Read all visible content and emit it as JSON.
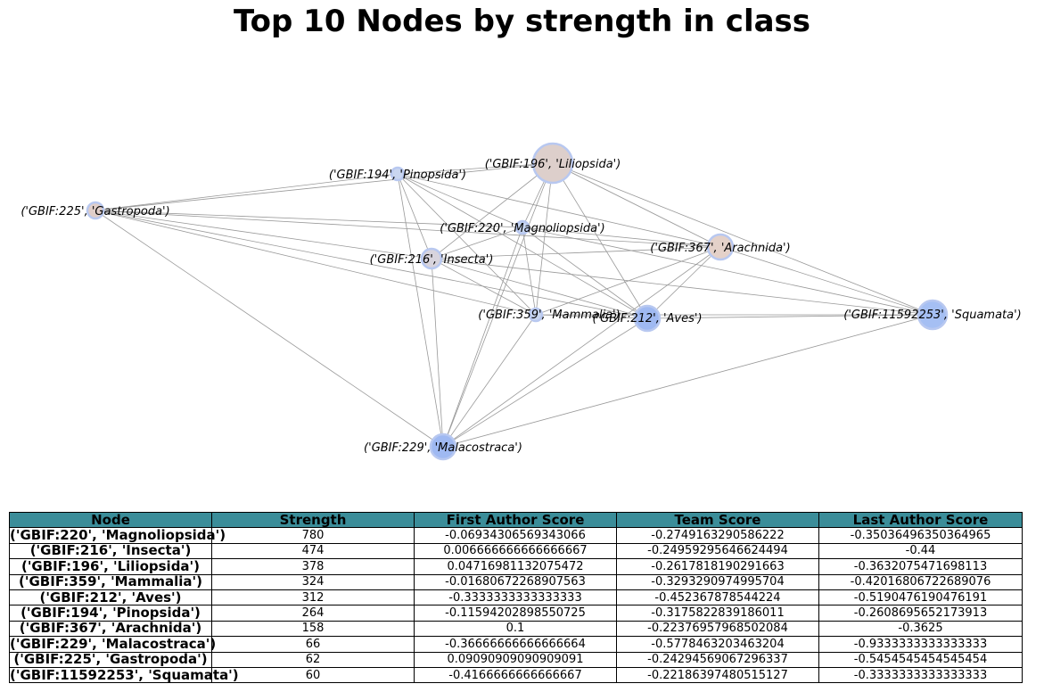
{
  "chart_data": {
    "type": "table",
    "title": "Top 10 Nodes by strength in class",
    "network": {
      "nodes": [
        {
          "id": "('GBIF:196', 'Liliopsida')",
          "color": "#ddcfcb"
        },
        {
          "id": "('GBIF:194', 'Pinopsida')",
          "color": "#c9d6f0"
        },
        {
          "id": "('GBIF:225', 'Gastropoda')",
          "color": "#e0cec9"
        },
        {
          "id": "('GBIF:220', 'Magnoliopsida')",
          "color": "#c7d6f2"
        },
        {
          "id": "('GBIF:367', 'Arachnida')",
          "color": "#e4d1c9"
        },
        {
          "id": "('GBIF:216', 'Insecta')",
          "color": "#d8d4dd"
        },
        {
          "id": "('GBIF:359', 'Mammalia')",
          "color": "#c8d6f0"
        },
        {
          "id": "('GBIF:212', 'Aves')",
          "color": "#9fb9f2"
        },
        {
          "id": "('GBIF:11592253', 'Squamata')",
          "color": "#a5bff3"
        },
        {
          "id": "('GBIF:229', 'Malacostraca')",
          "color": "#9fb9f2"
        }
      ],
      "edges": [
        [
          1,
          0
        ],
        [
          1,
          2
        ],
        [
          1,
          5
        ],
        [
          1,
          6
        ],
        [
          1,
          7
        ],
        [
          1,
          4
        ],
        [
          1,
          9
        ],
        [
          0,
          2
        ],
        [
          0,
          5
        ],
        [
          0,
          6
        ],
        [
          0,
          7
        ],
        [
          0,
          4
        ],
        [
          0,
          8
        ],
        [
          0,
          9
        ],
        [
          0,
          3
        ],
        [
          2,
          3
        ],
        [
          2,
          4
        ],
        [
          2,
          5
        ],
        [
          2,
          6
        ],
        [
          2,
          7
        ],
        [
          2,
          9
        ],
        [
          3,
          5
        ],
        [
          3,
          6
        ],
        [
          3,
          7
        ],
        [
          3,
          4
        ],
        [
          3,
          8
        ],
        [
          3,
          9
        ],
        [
          5,
          4
        ],
        [
          5,
          8
        ],
        [
          5,
          6
        ],
        [
          5,
          9
        ],
        [
          5,
          7
        ],
        [
          6,
          4
        ],
        [
          6,
          7
        ],
        [
          6,
          8
        ],
        [
          6,
          9
        ],
        [
          7,
          8
        ],
        [
          7,
          4
        ],
        [
          7,
          9
        ],
        [
          4,
          8
        ],
        [
          4,
          9
        ],
        [
          9,
          8
        ],
        [
          1,
          3
        ]
      ]
    },
    "columns": [
      "Node",
      "Strength",
      "First Author Score",
      "Team Score",
      "Last Author Score"
    ],
    "rows": [
      [
        "('GBIF:220', 'Magnoliopsida')",
        "780",
        "-0.06934306569343066",
        "-0.2749163290586222",
        "-0.35036496350364965"
      ],
      [
        "('GBIF:216', 'Insecta')",
        "474",
        "0.006666666666666667",
        "-0.24959295646624494",
        "-0.44"
      ],
      [
        "('GBIF:196', 'Liliopsida')",
        "378",
        "0.04716981132075472",
        "-0.2617818190291663",
        "-0.3632075471698113"
      ],
      [
        "('GBIF:359', 'Mammalia')",
        "324",
        "-0.01680672268907563",
        "-0.3293290974995704",
        "-0.42016806722689076"
      ],
      [
        "('GBIF:212', 'Aves')",
        "312",
        "-0.3333333333333333",
        "-0.452367878544224",
        "-0.5190476190476191"
      ],
      [
        "('GBIF:194', 'Pinopsida')",
        "264",
        "-0.11594202898550725",
        "-0.3175822839186011",
        "-0.2608695652173913"
      ],
      [
        "('GBIF:367', 'Arachnida')",
        "158",
        "0.1",
        "-0.22376957968502084",
        "-0.3625"
      ],
      [
        "('GBIF:229', 'Malacostraca')",
        "66",
        "-0.36666666666666664",
        "-0.5778463203463204",
        "-0.9333333333333333"
      ],
      [
        "('GBIF:225', 'Gastropoda')",
        "62",
        "0.09090909090909091",
        "-0.24294569067296337",
        "-0.5454545454545454"
      ],
      [
        "('GBIF:11592253', 'Squamata')",
        "60",
        "-0.4166666666666667",
        "-0.22186397480515127",
        "-0.3333333333333333"
      ]
    ],
    "header_color": "#3b8d99",
    "edge_color": "#999999",
    "node_border_color": "#b8c8f0"
  }
}
